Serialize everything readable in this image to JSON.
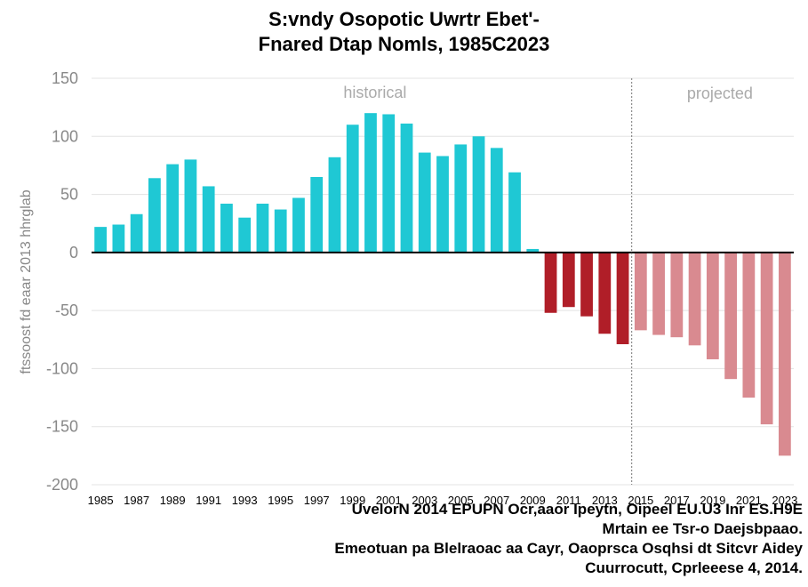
{
  "title_lines": [
    "S:vndy Osopotic Uwrtr Ebet'-",
    "Fnared Dtap Nomls, 1985C2023"
  ],
  "source_lines": [
    "UvelorN 2014 EPUPN Ocr,aaor Ipeytn, Oipeel EU.U3 Inr ES.H9E",
    "Mrtain ee Tsr-o Daejsbpaao.",
    "Emeotuan pa Blelraoac aa Cayr, Oaoprsca Osqhsi dt Sitcvr Aidey",
    "Cuurrocutt, Cprleeese 4, 2014."
  ],
  "chart_data": {
    "type": "bar",
    "title": "S:vndy Osopotic Uwrtr Ebet'- Fnared Dtap Nomls, 1985C2023",
    "ylabel": "ftssoost fd eaar 2013 hhrglab",
    "xlabel": "",
    "ylim": [
      -200,
      150
    ],
    "yticks": [
      150,
      100,
      50,
      0,
      -50,
      -100,
      -150,
      -200
    ],
    "grid": true,
    "categories": [
      1985,
      1986,
      1987,
      1988,
      1989,
      1990,
      1991,
      1992,
      1993,
      1994,
      1995,
      1996,
      1997,
      1998,
      1999,
      2000,
      2001,
      2002,
      2003,
      2004,
      2005,
      2006,
      2007,
      2008,
      2009,
      2010,
      2011,
      2012,
      2013,
      2014,
      2015,
      2016,
      2017,
      2018,
      2019,
      2020,
      2021,
      2022,
      2023
    ],
    "xtick_labels": [
      "1985",
      "1987",
      "1989",
      "1991",
      "1993",
      "1995",
      "1997",
      "1999",
      "2001",
      "2003",
      "2005",
      "2007",
      "2009",
      "2011",
      "2013",
      "2015",
      "2017",
      "2019",
      "2021",
      "2023"
    ],
    "values": [
      22,
      24,
      33,
      64,
      76,
      80,
      57,
      42,
      30,
      42,
      37,
      47,
      65,
      82,
      110,
      120,
      119,
      111,
      86,
      83,
      93,
      100,
      90,
      69,
      3,
      -52,
      -47,
      -55,
      -70,
      -79,
      -67,
      -71,
      -73,
      -80,
      -92,
      -109,
      -125,
      -148,
      -175
    ],
    "projection_start": 2015,
    "annotations": [
      "historical",
      "projected"
    ],
    "colors": {
      "positive": "#1fc8d4",
      "negative_historical": "#b01e28",
      "negative_projected": "#d98a90"
    }
  }
}
